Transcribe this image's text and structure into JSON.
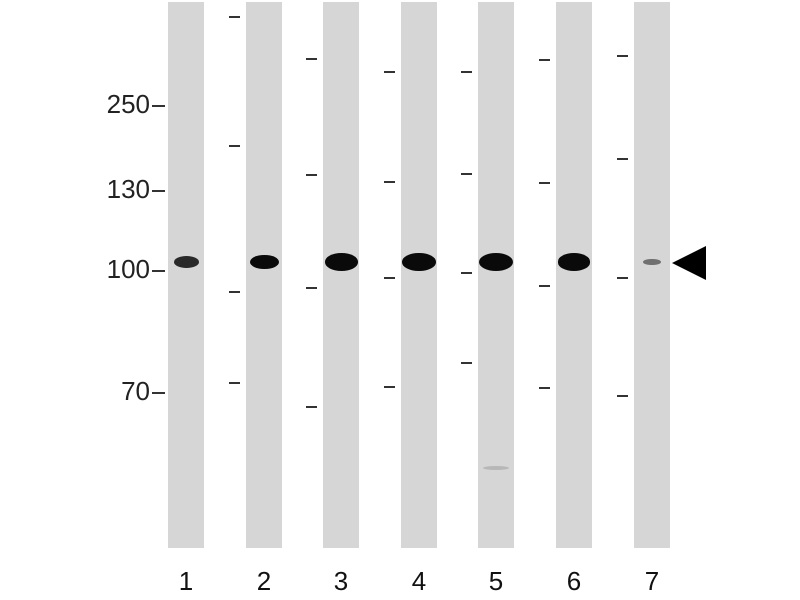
{
  "mw_markers": [
    "250",
    "130",
    "100",
    "70"
  ],
  "lanes": [
    {
      "label": "1",
      "band_intensity": 0.55
    },
    {
      "label": "2",
      "band_intensity": 0.75
    },
    {
      "label": "3",
      "band_intensity": 0.95
    },
    {
      "label": "4",
      "band_intensity": 0.97
    },
    {
      "label": "5",
      "band_intensity": 1.0
    },
    {
      "label": "6",
      "band_intensity": 0.93
    },
    {
      "label": "7",
      "band_intensity": 0.2
    }
  ],
  "arrow": {
    "icon": "arrowhead-left-icon",
    "color": "#000000"
  },
  "colors": {
    "lane": "#d6d6d6",
    "band": "#0a0a0a"
  }
}
